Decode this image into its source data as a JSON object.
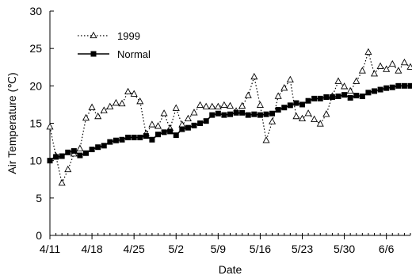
{
  "chart_data": {
    "type": "line",
    "title": "",
    "xlabel": "Date",
    "ylabel": "Air Temperature (℃)",
    "x_tick_labels": [
      "4/11",
      "4/18",
      "4/25",
      "5/2",
      "5/9",
      "5/16",
      "5/23",
      "5/30",
      "6/6"
    ],
    "x_tick_days": [
      0,
      7,
      14,
      21,
      28,
      35,
      42,
      49,
      56
    ],
    "xlim_days": [
      0,
      60
    ],
    "ylim": [
      0,
      30
    ],
    "yticks": [
      0,
      5,
      10,
      15,
      20,
      25,
      30
    ],
    "grid": false,
    "legend_position": "top-left",
    "series": [
      {
        "name": "1999",
        "style": "dotted",
        "marker": "open-triangle",
        "color": "#000000",
        "x_days": [
          0,
          1,
          2,
          3,
          4,
          5,
          6,
          7,
          8,
          9,
          10,
          11,
          12,
          13,
          14,
          15,
          16,
          17,
          18,
          19,
          20,
          21,
          22,
          23,
          24,
          25,
          26,
          27,
          28,
          29,
          30,
          31,
          32,
          33,
          34,
          35,
          36,
          37,
          38,
          39,
          40,
          41,
          42,
          43,
          44,
          45,
          46,
          47,
          48,
          49,
          50,
          51,
          52,
          53,
          54,
          55,
          56,
          57,
          58,
          59,
          60
        ],
        "values": [
          14.5,
          10.6,
          7.0,
          8.8,
          10.9,
          11.6,
          15.7,
          17.1,
          15.9,
          16.7,
          17.2,
          17.7,
          17.6,
          19.2,
          18.9,
          17.9,
          13.6,
          14.8,
          14.6,
          16.3,
          14.3,
          17.0,
          14.8,
          15.6,
          16.4,
          17.4,
          17.2,
          17.2,
          17.2,
          17.4,
          17.3,
          16.6,
          17.3,
          18.7,
          21.2,
          17.4,
          12.7,
          15.2,
          18.6,
          19.7,
          20.8,
          15.9,
          15.6,
          16.3,
          15.5,
          14.9,
          16.2,
          18.6,
          20.6,
          19.9,
          19.3,
          20.6,
          22.0,
          24.5,
          21.6,
          22.6,
          22.2,
          22.9,
          22.0,
          23.1,
          22.5
        ]
      },
      {
        "name": "Normal",
        "style": "solid",
        "marker": "filled-square",
        "color": "#000000",
        "x_days": [
          0,
          1,
          2,
          3,
          4,
          5,
          6,
          7,
          8,
          9,
          10,
          11,
          12,
          13,
          14,
          15,
          16,
          17,
          18,
          19,
          20,
          21,
          22,
          23,
          24,
          25,
          26,
          27,
          28,
          29,
          30,
          31,
          32,
          33,
          34,
          35,
          36,
          37,
          38,
          39,
          40,
          41,
          42,
          43,
          44,
          45,
          46,
          47,
          48,
          49,
          50,
          51,
          52,
          53,
          54,
          55,
          56,
          57,
          58,
          59,
          60
        ],
        "values": [
          10.0,
          10.5,
          10.6,
          11.1,
          11.3,
          10.7,
          11.0,
          11.5,
          11.8,
          12.0,
          12.5,
          12.7,
          12.8,
          13.1,
          13.1,
          13.1,
          13.3,
          12.8,
          13.5,
          13.8,
          13.9,
          13.4,
          14.2,
          14.4,
          14.7,
          15.0,
          15.3,
          16.1,
          16.3,
          16.1,
          16.2,
          16.4,
          16.4,
          16.1,
          16.2,
          16.1,
          16.2,
          16.3,
          16.8,
          17.1,
          17.4,
          17.7,
          17.5,
          18.0,
          18.3,
          18.3,
          18.5,
          18.5,
          18.6,
          18.8,
          18.4,
          18.7,
          18.6,
          19.1,
          19.3,
          19.5,
          19.7,
          19.8,
          20.0,
          20.0,
          20.0
        ]
      }
    ]
  }
}
